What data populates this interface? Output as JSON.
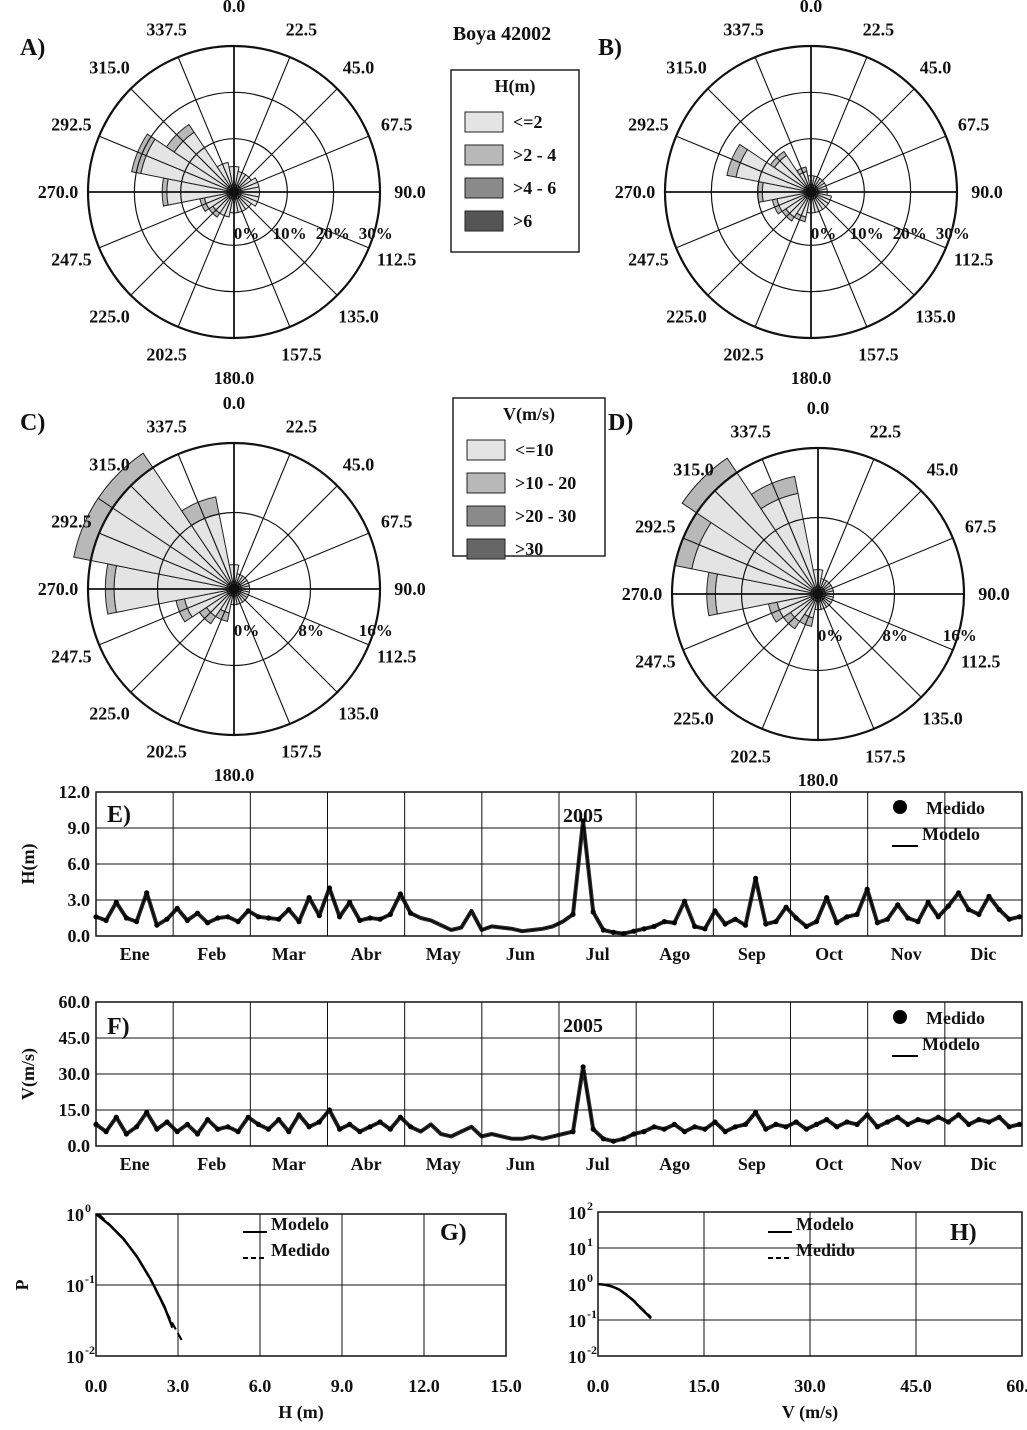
{
  "title": "Boya 42002",
  "roses": {
    "directions": [
      "0.0",
      "22.5",
      "45.0",
      "67.5",
      "90.0",
      "112.5",
      "135.0",
      "157.5",
      "180.0",
      "202.5",
      "225.0",
      "247.5",
      "270.0",
      "292.5",
      "315.0",
      "337.5"
    ],
    "panels": [
      {
        "label": "A)",
        "rings": [
          "0%",
          "10%",
          "20%",
          "30%"
        ]
      },
      {
        "label": "B)",
        "rings": [
          "0%",
          "10%",
          "20%",
          "30%"
        ]
      },
      {
        "label": "C)",
        "rings": [
          "0%",
          "8%",
          "16%"
        ]
      },
      {
        "label": "D)",
        "rings": [
          "0%",
          "8%",
          "16%"
        ]
      }
    ]
  },
  "legend_h": {
    "title": "H(m)",
    "entries": [
      "<=2",
      ">2 - 4",
      ">4 - 6",
      ">6"
    ],
    "colors": [
      "#e4e4e4",
      "#b8b8b8",
      "#8a8a8a",
      "#555555"
    ]
  },
  "legend_v": {
    "title": "V(m/s)",
    "entries": [
      "<=10",
      ">10 - 20",
      ">20 - 30",
      ">30"
    ],
    "colors": [
      "#e4e4e4",
      "#b8b8b8",
      "#8a8a8a",
      "#666666"
    ]
  },
  "chart_data": [
    {
      "type": "area",
      "panel": "A)",
      "axis": "direction (deg)",
      "series": [
        {
          "name": "<=2",
          "values": [
            4,
            3,
            3,
            4,
            4,
            4,
            3,
            3,
            3,
            4,
            4,
            5,
            13,
            19,
            14,
            5
          ]
        },
        {
          "name": ">2 - 4",
          "values": [
            0,
            0,
            0,
            0,
            0,
            0,
            0,
            0,
            0,
            0,
            1,
            1,
            1,
            2,
            2,
            0
          ]
        }
      ]
    },
    {
      "type": "area",
      "panel": "B)",
      "axis": "direction (deg)",
      "series": [
        {
          "name": "<=2",
          "values": [
            2,
            2,
            2,
            2,
            2,
            3,
            3,
            3,
            3,
            4,
            5,
            6,
            9,
            15,
            8,
            3
          ]
        },
        {
          "name": ">2 - 4",
          "values": [
            0,
            0,
            0,
            0,
            0,
            0,
            0,
            0,
            0,
            1,
            1,
            1,
            1,
            2,
            1,
            1
          ]
        }
      ]
    },
    {
      "type": "area",
      "panel": "C)",
      "axis": "direction (deg)",
      "series": [
        {
          "name": "<=10",
          "values": [
            2,
            1,
            1,
            1,
            1,
            1,
            1,
            1,
            1,
            2,
            3,
            5,
            13,
            16,
            16,
            8
          ]
        },
        {
          "name": ">10 - 20",
          "values": [
            0,
            0,
            0,
            0,
            0,
            0,
            0,
            0,
            0,
            1,
            1,
            1,
            1,
            2,
            2,
            2
          ]
        }
      ]
    },
    {
      "type": "area",
      "panel": "D)",
      "axis": "direction (deg)",
      "series": [
        {
          "name": "<=10",
          "values": [
            2,
            1,
            1,
            1,
            1,
            1,
            1,
            1,
            1,
            2,
            3,
            4,
            11,
            14,
            16,
            11
          ]
        },
        {
          "name": ">10 - 20",
          "values": [
            0,
            0,
            0,
            0,
            0,
            0,
            0,
            0,
            0,
            1,
            1,
            1,
            1,
            2,
            2,
            2
          ]
        }
      ]
    },
    {
      "type": "line",
      "panel": "E)",
      "annotation": "2005",
      "ylabel": "H(m)",
      "ylim": [
        0,
        12
      ],
      "yticks": [
        "0.0",
        "3.0",
        "6.0",
        "9.0",
        "12.0"
      ],
      "months": [
        "Ene",
        "Feb",
        "Mar",
        "Abr",
        "May",
        "Jun",
        "Jul",
        "Ago",
        "Sep",
        "Oct",
        "Nov",
        "Dic"
      ],
      "series": [
        {
          "name": "Medido",
          "style": "dots"
        },
        {
          "name": "Modelo",
          "style": "line"
        }
      ],
      "x": [
        0,
        4,
        8,
        12,
        16,
        20,
        24,
        28,
        32,
        36,
        40,
        44,
        48,
        52,
        56,
        60,
        64,
        68,
        72,
        76,
        80,
        84,
        88,
        92,
        96,
        100,
        104,
        108,
        112,
        116,
        120,
        124,
        128,
        132,
        136,
        140,
        144,
        148,
        152,
        156,
        160,
        164,
        168,
        172,
        176,
        180,
        184,
        188,
        192,
        196,
        200,
        204,
        208,
        212,
        216,
        220,
        224,
        228,
        232,
        236,
        240,
        244,
        248,
        252,
        256,
        260,
        264,
        268,
        272,
        276,
        280,
        284,
        288,
        292,
        296,
        300,
        304,
        308,
        312,
        316,
        320,
        324,
        328,
        332,
        336,
        340,
        344,
        348,
        352,
        356,
        360,
        364
      ],
      "y": [
        1.6,
        1.3,
        2.8,
        1.5,
        1.2,
        3.6,
        0.9,
        1.4,
        2.3,
        1.3,
        1.9,
        1.1,
        1.5,
        1.6,
        1.2,
        2.1,
        1.6,
        1.5,
        1.4,
        2.2,
        1.2,
        3.2,
        1.7,
        4.0,
        1.6,
        2.8,
        1.3,
        1.5,
        1.4,
        1.8,
        3.5,
        1.9,
        1.5,
        1.3,
        0.9,
        0.5,
        0.7,
        2.1,
        0.5,
        0.8,
        0.7,
        0.6,
        0.4,
        0.5,
        0.6,
        0.8,
        1.2,
        1.8,
        9.6,
        2.0,
        0.5,
        0.3,
        0.2,
        0.4,
        0.6,
        0.8,
        1.2,
        1.1,
        2.9,
        0.8,
        0.6,
        2.1,
        1.0,
        1.4,
        0.9,
        4.8,
        1.0,
        1.2,
        2.4,
        1.5,
        0.8,
        1.2,
        3.2,
        1.1,
        1.6,
        1.8,
        3.9,
        1.1,
        1.4,
        2.6,
        1.5,
        1.2,
        2.8,
        1.6,
        2.5,
        3.6,
        2.2,
        1.8,
        3.3,
        2.2,
        1.4,
        1.6
      ]
    },
    {
      "type": "line",
      "panel": "F)",
      "annotation": "2005",
      "ylabel": "V(m/s)",
      "ylim": [
        0,
        60
      ],
      "yticks": [
        "0.0",
        "15.0",
        "30.0",
        "45.0",
        "60.0"
      ],
      "months": [
        "Ene",
        "Feb",
        "Mar",
        "Abr",
        "May",
        "Jun",
        "Jul",
        "Ago",
        "Sep",
        "Oct",
        "Nov",
        "Dic"
      ],
      "series": [
        {
          "name": "Medido",
          "style": "dots"
        },
        {
          "name": "Modelo",
          "style": "line"
        }
      ],
      "x": [
        0,
        4,
        8,
        12,
        16,
        20,
        24,
        28,
        32,
        36,
        40,
        44,
        48,
        52,
        56,
        60,
        64,
        68,
        72,
        76,
        80,
        84,
        88,
        92,
        96,
        100,
        104,
        108,
        112,
        116,
        120,
        124,
        128,
        132,
        136,
        140,
        144,
        148,
        152,
        156,
        160,
        164,
        168,
        172,
        176,
        180,
        184,
        188,
        192,
        196,
        200,
        204,
        208,
        212,
        216,
        220,
        224,
        228,
        232,
        236,
        240,
        244,
        248,
        252,
        256,
        260,
        264,
        268,
        272,
        276,
        280,
        284,
        288,
        292,
        296,
        300,
        304,
        308,
        312,
        316,
        320,
        324,
        328,
        332,
        336,
        340,
        344,
        348,
        352,
        356,
        360,
        364
      ],
      "y": [
        9,
        6,
        12,
        5,
        8,
        14,
        7,
        10,
        6,
        9,
        5,
        11,
        7,
        8,
        6,
        12,
        9,
        7,
        11,
        6,
        13,
        8,
        10,
        15,
        7,
        9,
        6,
        8,
        10,
        7,
        12,
        8,
        6,
        9,
        5,
        4,
        6,
        8,
        4,
        5,
        4,
        3,
        3,
        4,
        3,
        4,
        5,
        6,
        33,
        7,
        3,
        2,
        3,
        5,
        6,
        8,
        7,
        9,
        6,
        8,
        7,
        10,
        6,
        8,
        9,
        14,
        7,
        9,
        8,
        10,
        7,
        9,
        11,
        8,
        10,
        9,
        13,
        8,
        10,
        12,
        9,
        11,
        10,
        12,
        10,
        13,
        9,
        11,
        10,
        12,
        8,
        9
      ]
    },
    {
      "type": "line",
      "panel": "G)",
      "xlabel": "H (m)",
      "ylabel": "P",
      "xlim": [
        0,
        15
      ],
      "yscale": "log",
      "xticks": [
        "0.0",
        "3.0",
        "6.0",
        "9.0",
        "12.0",
        "15.0"
      ],
      "series": [
        {
          "name": "Modelo",
          "x": [
            0,
            0.5,
            1.0,
            1.5,
            2.0,
            2.5,
            2.8
          ],
          "y": [
            1.0,
            0.7,
            0.45,
            0.25,
            0.12,
            0.05,
            0.025
          ]
        },
        {
          "name": "Medido",
          "x": [
            0.1,
            0.6,
            1.1,
            1.6,
            2.1,
            2.6,
            3.2
          ],
          "y": [
            1.0,
            0.65,
            0.4,
            0.22,
            0.1,
            0.04,
            0.015
          ]
        }
      ]
    },
    {
      "type": "line",
      "panel": "H)",
      "xlabel": "V (m/s)",
      "xlim": [
        0,
        60
      ],
      "yscale": "log",
      "xticks": [
        "0.0",
        "15.0",
        "30.0",
        "45.0",
        "60.0"
      ],
      "series": [
        {
          "name": "Modelo",
          "x": [
            0,
            1,
            2,
            3,
            4,
            5,
            6,
            7,
            7.5
          ],
          "y": [
            1.0,
            0.95,
            0.85,
            0.7,
            0.5,
            0.35,
            0.22,
            0.14,
            0.11
          ]
        },
        {
          "name": "Medido",
          "x": [
            0,
            1,
            2,
            3,
            4,
            5,
            6,
            7,
            7.5
          ],
          "y": [
            1.0,
            0.95,
            0.85,
            0.72,
            0.52,
            0.36,
            0.23,
            0.15,
            0.12
          ]
        }
      ]
    }
  ],
  "cdf_yticks": {
    "g": [
      "10",
      "10",
      "10"
    ],
    "g_exp": [
      "0",
      "-1",
      "-2"
    ],
    "h": [
      "10",
      "10",
      "10",
      "10",
      "10"
    ],
    "h_exp": [
      "2",
      "1",
      "0",
      "-1",
      "-2"
    ]
  },
  "cdf_labels": {
    "g_panel": "G)",
    "h_panel": "H)",
    "g_series": [
      "Modelo",
      "Medido"
    ],
    "h_series": [
      "Modelo",
      "Medido"
    ]
  }
}
